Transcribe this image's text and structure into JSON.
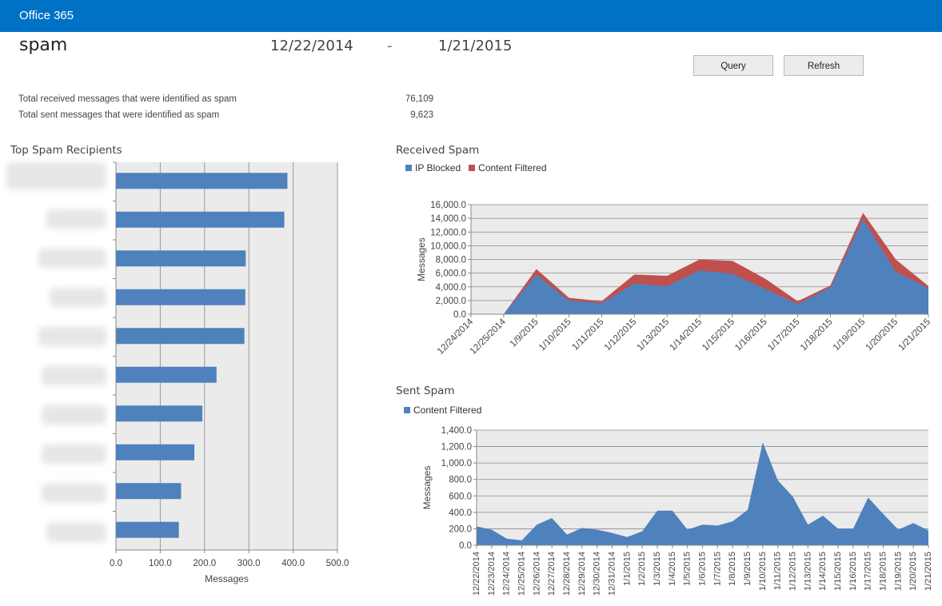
{
  "header": {
    "brand": "Office 365"
  },
  "report": {
    "title": "spam",
    "start_date": "12/22/2014",
    "separator": "-",
    "end_date": "1/21/2015",
    "query_label": "Query",
    "refresh_label": "Refresh"
  },
  "stats": [
    {
      "label": "Total received messages that were identified as spam",
      "value": "76,109"
    },
    {
      "label": "Total sent messages that were identified as spam",
      "value": "9,623"
    }
  ],
  "colors": {
    "blue": "#4f81bd",
    "red": "#c0504d",
    "topbar": "#0072c6",
    "plot_bg": "#ebebeb"
  },
  "chart_data": [
    {
      "type": "bar",
      "title": "Top Spam Recipients",
      "xlabel": "Messages",
      "ylabel": "",
      "categories_note": "recipient names blurred",
      "values": [
        387,
        380,
        293,
        292,
        290,
        227,
        195,
        177,
        147,
        142
      ],
      "xlim": [
        0,
        500
      ],
      "xticks": [
        "0.0",
        "100.0",
        "200.0",
        "300.0",
        "400.0",
        "500.0"
      ],
      "grid": true
    },
    {
      "type": "area",
      "title": "Received Spam",
      "ylabel": "Messages",
      "legend": "top-left",
      "categories": [
        "12/24/2014",
        "12/25/2014",
        "1/9/2015",
        "1/10/2015",
        "1/11/2015",
        "1/12/2015",
        "1/13/2015",
        "1/14/2015",
        "1/15/2015",
        "1/16/2015",
        "1/17/2015",
        "1/18/2015",
        "1/19/2015",
        "1/20/2015",
        "1/21/2015"
      ],
      "series": [
        {
          "name": "IP Blocked",
          "color": "#4f81bd",
          "values": [
            0,
            0,
            5800,
            2000,
            1600,
            4500,
            4100,
            6400,
            5900,
            3700,
            1500,
            3900,
            13900,
            6200,
            3800
          ]
        },
        {
          "name": "Content Filtered",
          "color": "#c0504d",
          "values": [
            0,
            0,
            800,
            400,
            300,
            1300,
            1500,
            1600,
            1900,
            1500,
            400,
            300,
            900,
            1800,
            300
          ]
        }
      ],
      "ylim": [
        0,
        16000
      ],
      "yticks": [
        "0.0",
        "2,000.0",
        "4,000.0",
        "6,000.0",
        "8,000.0",
        "10,000.0",
        "12,000.0",
        "14,000.0",
        "16,000.0"
      ],
      "grid": true
    },
    {
      "type": "area",
      "title": "Sent Spam",
      "ylabel": "Messages",
      "legend": "top-left",
      "categories": [
        "12/22/2014",
        "12/23/2014",
        "12/24/2014",
        "12/25/2014",
        "12/26/2014",
        "12/27/2014",
        "12/28/2014",
        "12/29/2014",
        "12/30/2014",
        "12/31/2014",
        "1/1/2015",
        "1/2/2015",
        "1/3/2015",
        "1/4/2015",
        "1/5/2015",
        "1/6/2015",
        "1/7/2015",
        "1/8/2015",
        "1/9/2015",
        "1/10/2015",
        "1/11/2015",
        "1/12/2015",
        "1/13/2015",
        "1/14/2015",
        "1/15/2015",
        "1/16/2015",
        "1/17/2015",
        "1/18/2015",
        "1/19/2015",
        "1/20/2015",
        "1/21/2015"
      ],
      "series": [
        {
          "name": "Content Filtered",
          "color": "#4f81bd",
          "values": [
            230,
            190,
            80,
            60,
            250,
            330,
            130,
            210,
            190,
            150,
            100,
            170,
            420,
            420,
            190,
            250,
            240,
            290,
            430,
            1250,
            790,
            590,
            250,
            360,
            200,
            200,
            580,
            380,
            190,
            270,
            180
          ]
        }
      ],
      "ylim": [
        0,
        1400
      ],
      "yticks": [
        "0.0",
        "200.0",
        "400.0",
        "600.0",
        "800.0",
        "1,000.0",
        "1,200.0",
        "1,400.0"
      ],
      "grid": true
    }
  ]
}
